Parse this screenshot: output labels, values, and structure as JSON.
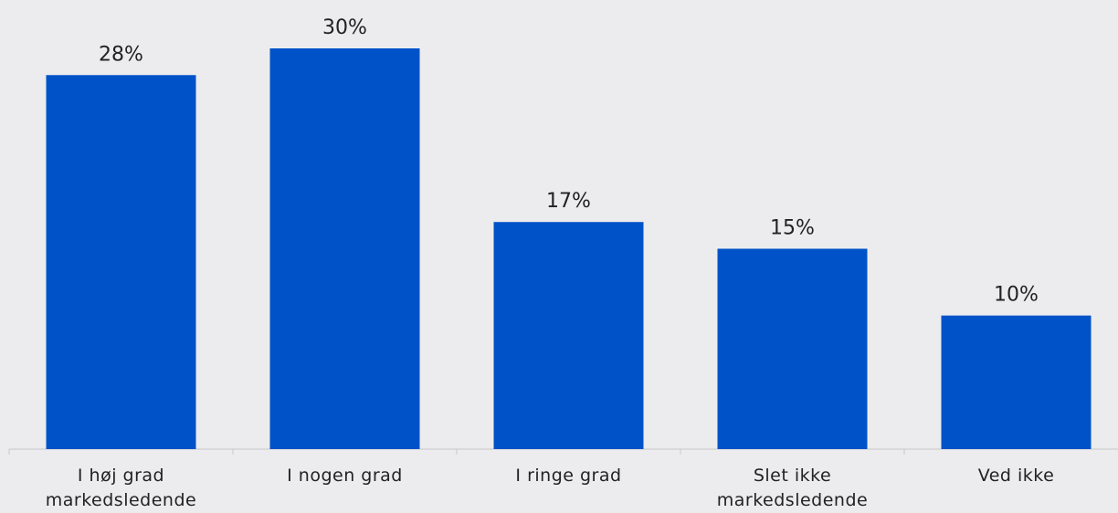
{
  "chart_data": {
    "type": "bar",
    "categories": [
      "I høj grad markedsledende",
      "I nogen grad",
      "I ringe grad",
      "Slet ikke markedsledende",
      "Ved ikke"
    ],
    "values": [
      28,
      30,
      17,
      15,
      10
    ],
    "value_labels": [
      "28%",
      "30%",
      "17%",
      "15%",
      "10%"
    ],
    "color": "#0052c8"
  }
}
